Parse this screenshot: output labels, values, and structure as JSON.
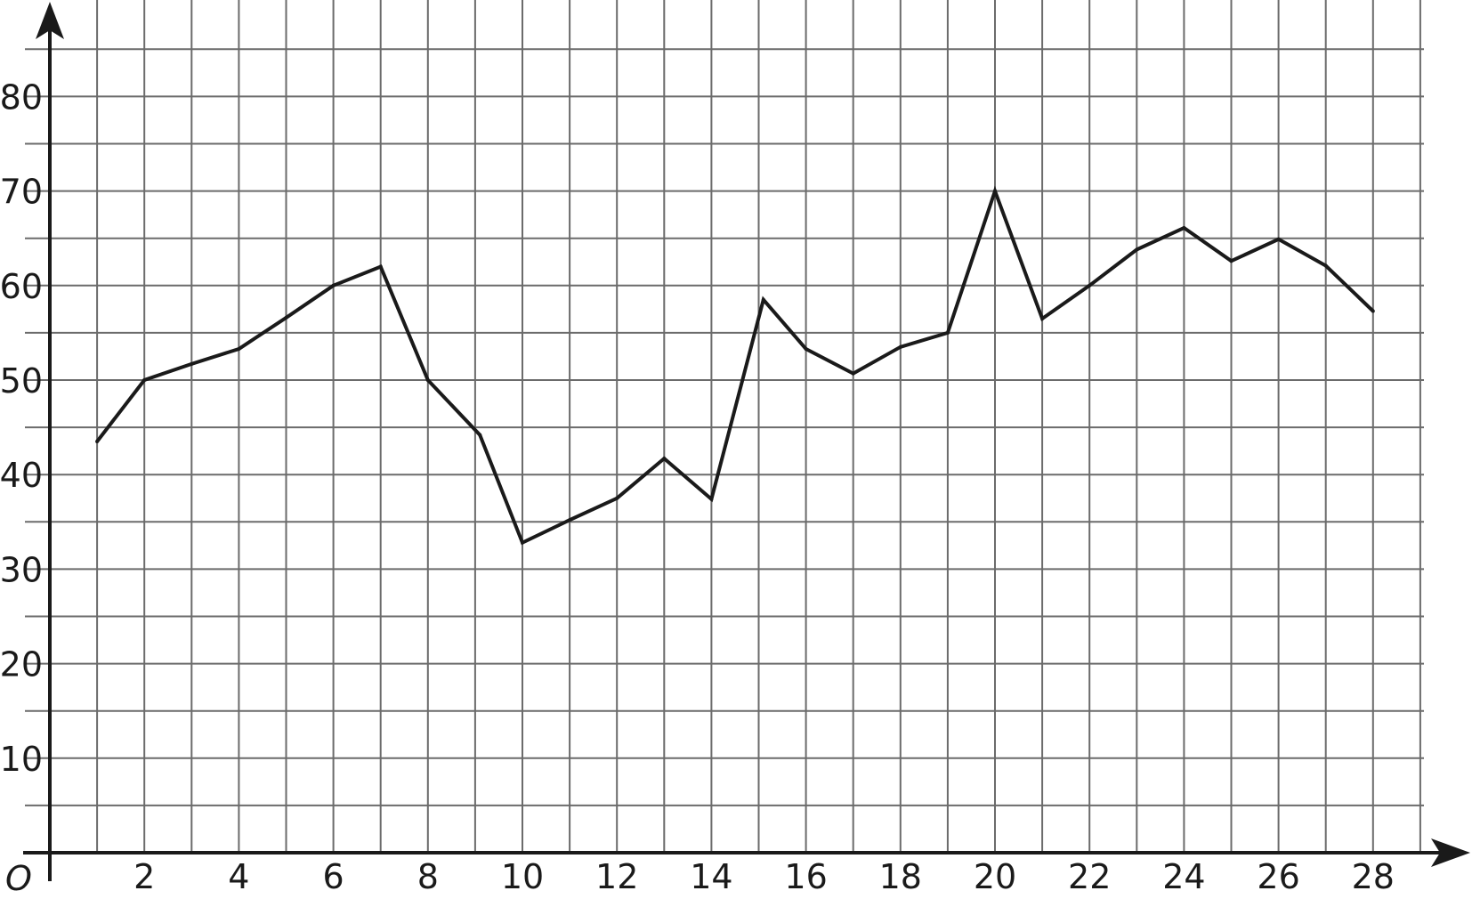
{
  "chart_data": {
    "type": "line",
    "title": "",
    "xlabel": "",
    "ylabel": "",
    "xlim": [
      0,
      29.5
    ],
    "ylim": [
      0,
      89
    ],
    "grid": true,
    "x_minor_step": 1,
    "y_minor_step": 5,
    "x_ticks": [
      2,
      4,
      6,
      8,
      10,
      12,
      14,
      16,
      18,
      20,
      22,
      24,
      26,
      28
    ],
    "y_ticks": [
      10,
      20,
      30,
      40,
      50,
      60,
      70,
      80
    ],
    "origin_label": "O",
    "series": [
      {
        "x": [
          1,
          2,
          3,
          4,
          5,
          6,
          7,
          8,
          9.1,
          10,
          11,
          12,
          13,
          14,
          15.1,
          16,
          17,
          18,
          19,
          20,
          21,
          22,
          23,
          24,
          25,
          26,
          27,
          28
        ],
        "values": [
          43.5,
          50,
          51.7,
          53.3,
          56.6,
          60,
          62,
          50,
          44.2,
          32.8,
          35.2,
          37.5,
          41.7,
          37.4,
          58.5,
          53.3,
          50.7,
          53.5,
          55,
          70,
          56.5,
          60,
          63.8,
          66.1,
          62.6,
          64.9,
          62.1,
          57.3
        ]
      }
    ]
  }
}
